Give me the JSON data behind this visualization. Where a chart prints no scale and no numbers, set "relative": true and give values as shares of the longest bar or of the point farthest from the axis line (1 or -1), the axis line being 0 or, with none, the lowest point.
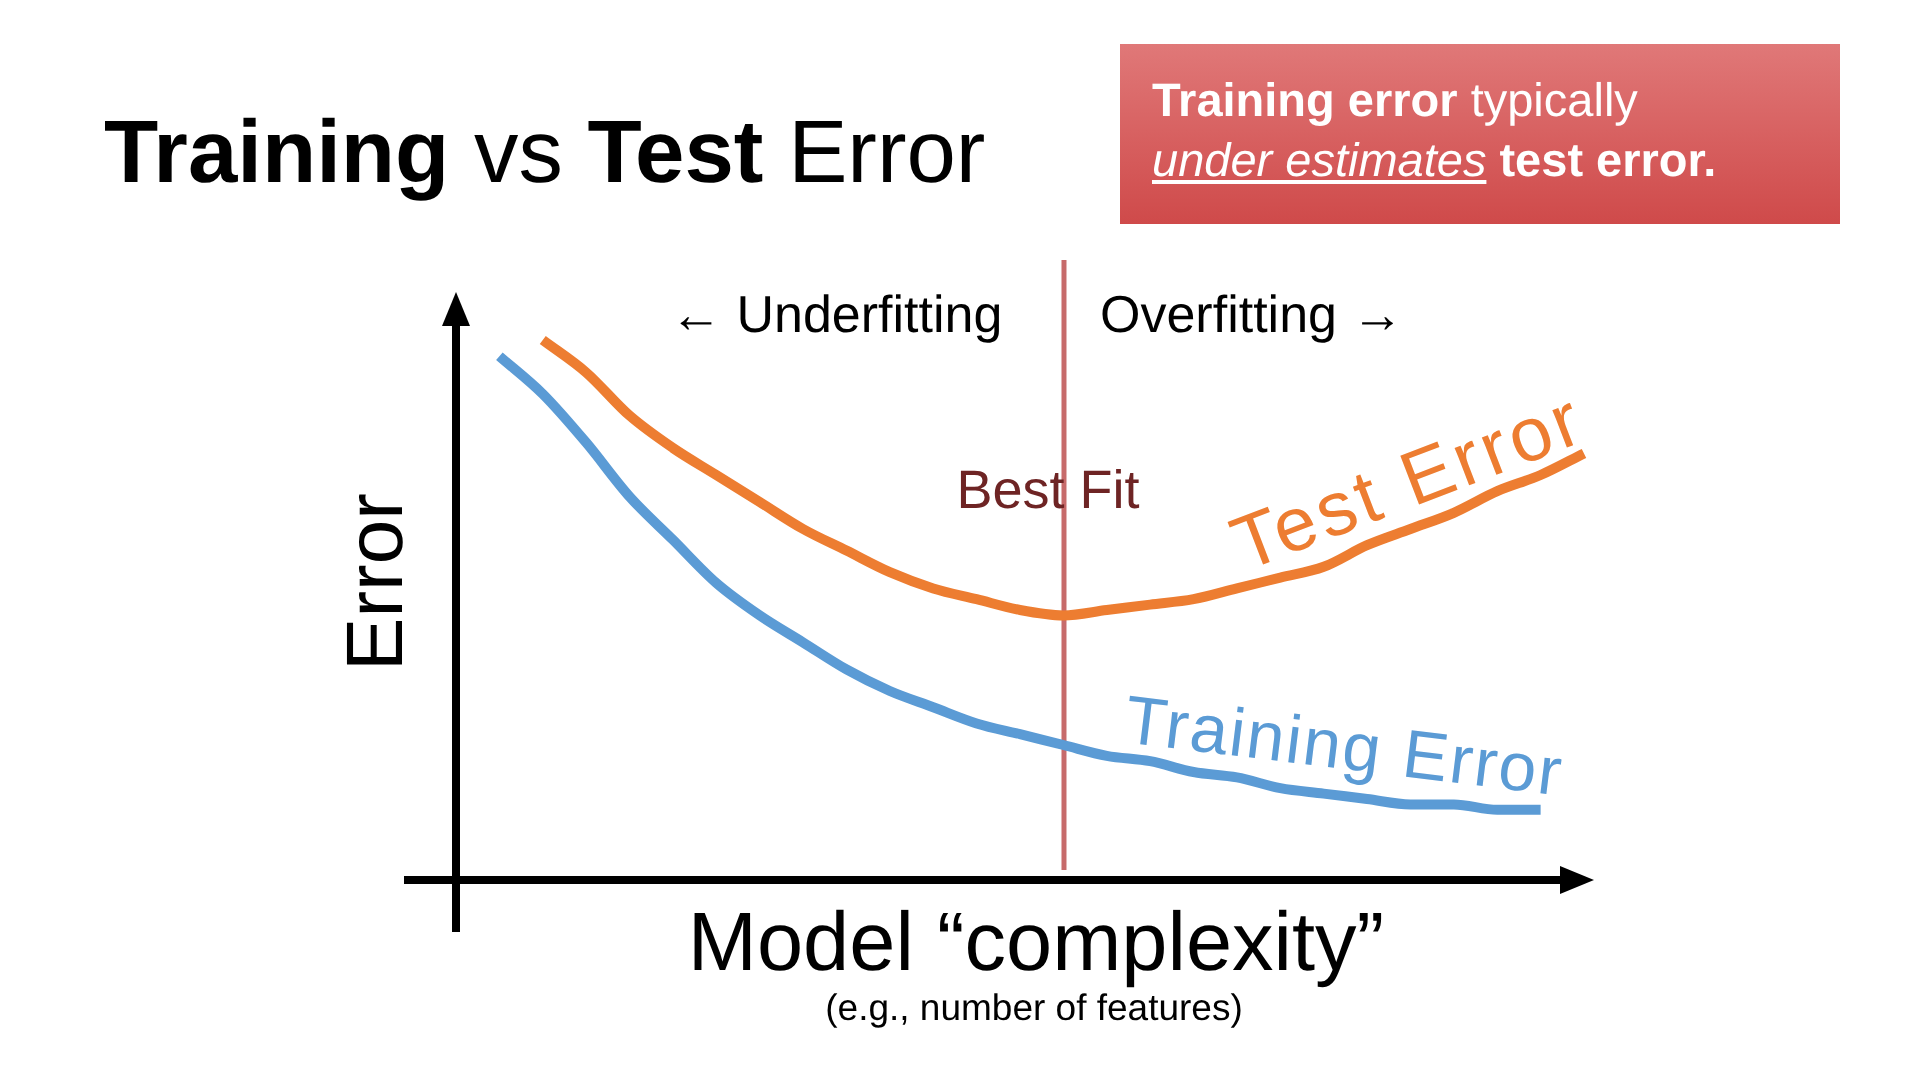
{
  "chart_data": {
    "type": "line",
    "title": "Training vs Test Error",
    "xlabel": "Model “complexity”",
    "ylabel": "Error",
    "relative": true,
    "marker": "none",
    "categories": [
      null,
      null,
      null,
      null,
      null,
      null,
      null,
      null,
      null,
      null,
      null,
      null,
      null,
      null,
      null,
      null,
      null,
      null,
      null,
      null,
      null,
      null,
      null,
      null,
      null,
      null,
      null
    ],
    "series": [
      {
        "name": "Test Error",
        "color": "#ed7d31",
        "values": [
          null,
          null,
          1,
          0.94,
          0.86,
          0.8,
          0.75,
          0.7,
          0.65,
          0.61,
          0.57,
          0.54,
          0.52,
          0.5,
          0.49,
          0.5,
          0.51,
          0.52,
          0.54,
          0.56,
          0.58,
          0.62,
          0.65,
          0.68,
          0.72,
          0.75,
          0.79
        ]
      },
      {
        "name": "Training Error",
        "color": "#5b9bd5",
        "values": [
          null,
          0.97,
          0.9,
          0.81,
          0.71,
          0.63,
          0.55,
          0.49,
          0.44,
          0.39,
          0.35,
          0.32,
          0.29,
          0.27,
          0.25,
          0.23,
          0.22,
          0.2,
          0.19,
          0.17,
          0.16,
          0.15,
          0.14,
          0.14,
          0.13,
          0.13,
          null
        ]
      }
    ],
    "annotations": [
      "Training error typically under estimates test error.",
      "← Underfitting",
      "Overfitting →",
      "Best Fit",
      "(e.g., number of features)"
    ]
  }
}
